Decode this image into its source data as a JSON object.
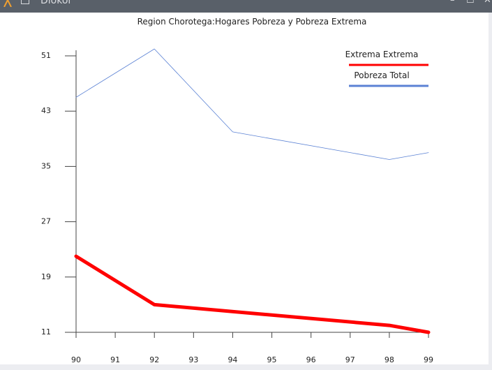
{
  "window": {
    "app_name": "Diokol",
    "minimize_label": "–",
    "maximize_label": "☐",
    "close_label": "✕"
  },
  "colors": {
    "extrema": "#ff0000",
    "pobreza": "#5b82d4"
  },
  "chart_data": {
    "type": "line",
    "title": "Region Chorotega:Hogares Pobreza y Pobreza Extrema",
    "xlabel": "",
    "ylabel": "",
    "x": [
      "90",
      "91",
      "92",
      "93",
      "94",
      "95",
      "96",
      "97",
      "98",
      "99"
    ],
    "xlim": [
      90,
      99
    ],
    "ylim": [
      11,
      51
    ],
    "yticks": [
      11,
      19,
      27,
      35,
      43,
      51
    ],
    "grid": false,
    "legend": "top-right",
    "series": [
      {
        "name": "Extrema Extrema",
        "color": "#ff0000",
        "points": [
          [
            90,
            22
          ],
          [
            92,
            15
          ],
          [
            98,
            12
          ],
          [
            99,
            11
          ]
        ]
      },
      {
        "name": "Pobreza Total",
        "color": "#5b82d4",
        "points": [
          [
            90,
            45
          ],
          [
            92,
            52
          ],
          [
            94,
            40
          ],
          [
            98,
            36
          ],
          [
            99,
            37
          ]
        ]
      }
    ]
  }
}
